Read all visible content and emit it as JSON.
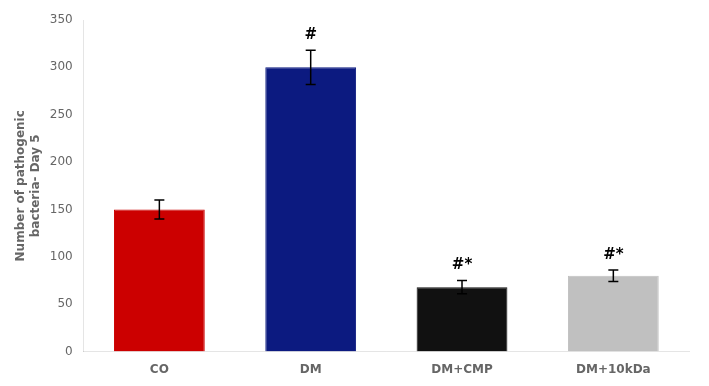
{
  "chart_data": {
    "type": "bar",
    "categories": [
      "CO",
      "DM",
      "DM+CMP",
      "DM+10kDa"
    ],
    "values": [
      150,
      300,
      68,
      80
    ],
    "errors": [
      10,
      18,
      7,
      6
    ],
    "colors": [
      "#cc0000",
      "#0c1a80",
      "#111111",
      "#c0c0c0"
    ],
    "ylabel": "Number of pathogenic\nbacteria- Day 5",
    "ylim": [
      0,
      350
    ],
    "yticks": [
      0,
      50,
      100,
      150,
      200,
      250,
      300,
      350
    ],
    "annotations": [
      {
        "text": "#",
        "category": "DM"
      },
      {
        "text": "#*",
        "category": "DM+CMP"
      },
      {
        "text": "#*",
        "category": "DM+10kDa"
      }
    ],
    "grid": false
  }
}
